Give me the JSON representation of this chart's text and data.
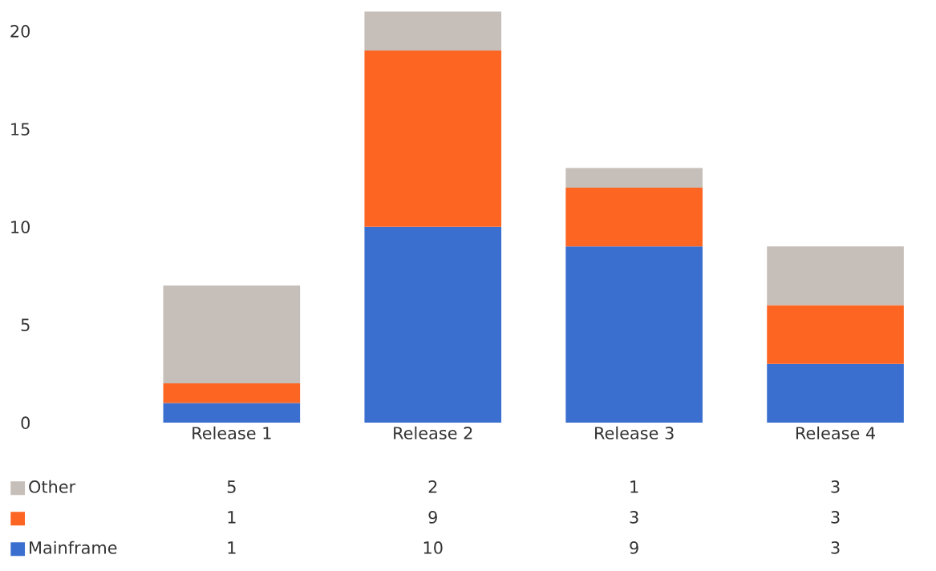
{
  "chart_data": {
    "type": "bar",
    "stacked": true,
    "categories": [
      "Release 1",
      "Release 2",
      "Release 3",
      "Release 4"
    ],
    "series": [
      {
        "name": "Mainframe",
        "color": "#3b6fcf",
        "values": [
          1,
          10,
          9,
          3
        ]
      },
      {
        "color": "#fd6522",
        "values": [
          1,
          9,
          3,
          3
        ]
      },
      {
        "name": "Other",
        "color": "#c6beb8",
        "values": [
          5,
          2,
          1,
          3
        ]
      }
    ],
    "ylim": [
      0,
      21
    ],
    "yticks": [
      0,
      5,
      10,
      15,
      20
    ],
    "grid": false,
    "data_labels": true,
    "legend": "bottom left"
  }
}
